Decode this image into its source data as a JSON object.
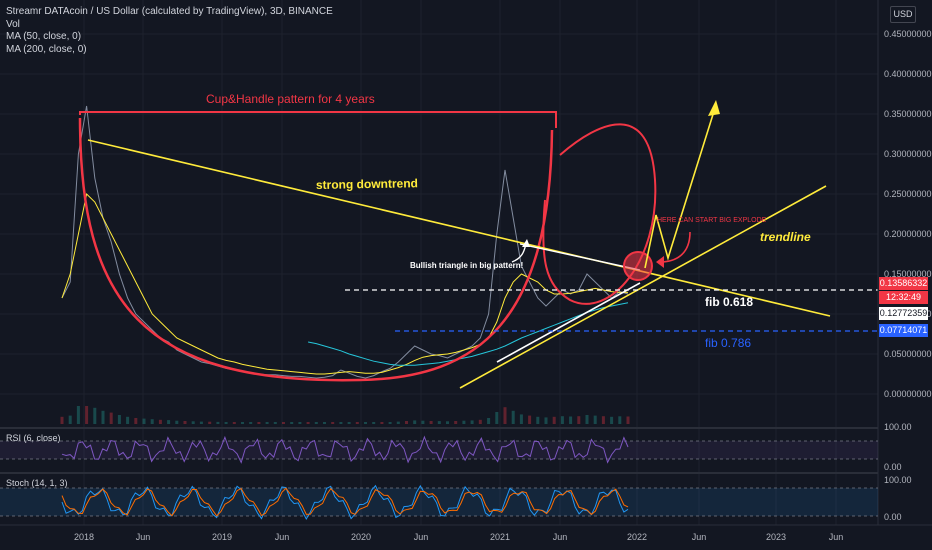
{
  "header": {
    "title": "Streamr DATAcoin / US Dollar (calculated by TradingView), 3D, BINANCE",
    "indicators": [
      "Vol",
      "MA (50, close, 0)",
      "MA (200, close, 0)"
    ],
    "currency": "USD"
  },
  "price_tags": [
    {
      "value": "0.13586332",
      "bg": "#f23645",
      "fg": "#ffffff"
    },
    {
      "value": "12:32:49",
      "bg": "#f23645",
      "fg": "#ffffff"
    },
    {
      "value": "0.12772359",
      "bg": "#ffffff",
      "fg": "#131722"
    },
    {
      "value": "0.07714071",
      "bg": "#2962ff",
      "fg": "#ffffff"
    }
  ],
  "annotations": {
    "cup_handle": "Cup&Handle pattern for 4 years",
    "downtrend": "strong downtrend",
    "triangle": "Bullish triangle in big pattern!",
    "explode": "HERE CAN START BIG EXPLODE",
    "trendline": "trendline",
    "fib618": "fib 0.618",
    "fib786": "fib 0.786"
  },
  "panes": {
    "rsi_label": "RSI (6, close)",
    "stoch_label": "Stoch (14, 1, 3)"
  },
  "chart_data": {
    "type": "line",
    "title": "Streamr DATAcoin / US Dollar (calculated by TradingView), 3D, BINANCE",
    "x_ticks": [
      "2018",
      "Jun",
      "2019",
      "Jun",
      "2020",
      "Jun",
      "2021",
      "Jun",
      "2022",
      "Jun",
      "2023",
      "Jun"
    ],
    "y_ticks": [
      "0.45000000",
      "0.40000000",
      "0.35000000",
      "0.30000000",
      "0.25000000",
      "0.20000000",
      "0.15000000",
      "0.10000000",
      "0.05000000",
      "0.00000000"
    ],
    "ylim": [
      0,
      0.45
    ],
    "rsi_ticks": [
      "100.00",
      "0.00"
    ],
    "stoch_ticks": [
      "100.00",
      "0.00"
    ],
    "series": [
      {
        "values": [
          0.12,
          0.14,
          0.3,
          0.36,
          0.27,
          0.22,
          0.19,
          0.15,
          0.12,
          0.1,
          0.09,
          0.08,
          0.07,
          0.065,
          0.055,
          0.05,
          0.045,
          0.04,
          0.038,
          0.035,
          0.032,
          0.03,
          0.028,
          0.026,
          0.025,
          0.024,
          0.024,
          0.023,
          0.022,
          0.022,
          0.021,
          0.02,
          0.021,
          0.023,
          0.03,
          0.026,
          0.022,
          0.02,
          0.023,
          0.028,
          0.032,
          0.04,
          0.05,
          0.06,
          0.055,
          0.05,
          0.048,
          0.045,
          0.05,
          0.055,
          0.06,
          0.07,
          0.1,
          0.2,
          0.28,
          0.22,
          0.16,
          0.14,
          0.12,
          0.11,
          0.12,
          0.13,
          0.125,
          0.13,
          0.15,
          0.14,
          0.13,
          0.12,
          0.128,
          0.125
        ]
      },
      {
        "values": [
          0.12,
          0.15,
          0.2,
          0.25,
          0.24,
          0.22,
          0.2,
          0.18,
          0.16,
          0.14,
          0.12,
          0.1,
          0.09,
          0.08,
          0.07,
          0.065,
          0.06,
          0.055,
          0.05,
          0.045,
          0.042,
          0.04,
          0.037,
          0.035,
          0.033,
          0.031,
          0.03,
          0.029,
          0.028,
          0.027,
          0.026,
          0.025,
          0.025,
          0.026,
          0.027,
          0.028,
          0.027,
          0.026,
          0.026,
          0.027,
          0.03,
          0.033,
          0.037,
          0.042,
          0.046,
          0.048,
          0.049,
          0.05,
          0.052,
          0.055,
          0.058,
          0.062,
          0.07,
          0.09,
          0.12,
          0.14,
          0.15,
          0.145,
          0.14,
          0.13,
          0.125,
          0.125,
          0.126,
          0.128,
          0.13,
          0.132,
          0.13,
          0.128,
          0.127,
          0.127
        ]
      },
      {
        "values": [
          null,
          null,
          null,
          null,
          null,
          null,
          null,
          null,
          null,
          null,
          null,
          null,
          null,
          null,
          null,
          null,
          null,
          null,
          null,
          null,
          null,
          null,
          null,
          null,
          null,
          null,
          null,
          null,
          null,
          null,
          0.065,
          0.063,
          0.06,
          0.057,
          0.054,
          0.05,
          0.047,
          0.044,
          0.041,
          0.039,
          0.037,
          0.036,
          0.036,
          0.036,
          0.037,
          0.038,
          0.039,
          0.041,
          0.043,
          0.045,
          0.047,
          0.05,
          0.053,
          0.056,
          0.06,
          0.065,
          0.07,
          0.074,
          0.078,
          0.082,
          0.086,
          0.09,
          0.094,
          0.098,
          0.102,
          0.105,
          0.108,
          0.11,
          0.112,
          0.114
        ]
      }
    ],
    "grid": true
  }
}
